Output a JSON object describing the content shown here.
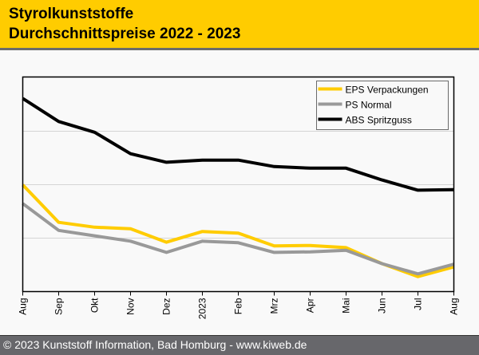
{
  "header": {
    "title_line1": "Styrolkunststoffe",
    "title_line2": "Durchschnittspreise 2022 - 2023"
  },
  "footer": {
    "text": "© 2023 Kunststoff Information, Bad Homburg - www.kiweb.de"
  },
  "chart_data": {
    "type": "line",
    "title": "Styrolkunststoffe Durchschnittspreise 2022 - 2023",
    "xlabel": "",
    "ylabel": "",
    "y_unit_note": "No y-axis tick labels shown; values estimated in gridline units (4 equal gridline intervals)",
    "ylim": [
      0,
      4
    ],
    "grid": true,
    "legend_position": "top-right",
    "categories": [
      "Aug",
      "Sep",
      "Okt",
      "Nov",
      "Dez",
      "2023",
      "Feb",
      "Mrz",
      "Apr",
      "Mai",
      "Jun",
      "Jul",
      "Aug"
    ],
    "series": [
      {
        "name": "EPS Verpackungen",
        "color": "#ffcc00",
        "values": [
          1.99,
          1.29,
          1.2,
          1.17,
          0.92,
          1.12,
          1.09,
          0.85,
          0.86,
          0.82,
          0.52,
          0.28,
          0.46
        ]
      },
      {
        "name": "PS Normal",
        "color": "#999999",
        "values": [
          1.64,
          1.14,
          1.04,
          0.94,
          0.73,
          0.94,
          0.91,
          0.73,
          0.74,
          0.77,
          0.52,
          0.33,
          0.51
        ]
      },
      {
        "name": "ABS Spritzguss",
        "color": "#000000",
        "values": [
          3.6,
          3.17,
          2.97,
          2.57,
          2.41,
          2.45,
          2.45,
          2.33,
          2.3,
          2.3,
          2.08,
          1.89,
          1.9
        ]
      }
    ]
  },
  "colors": {
    "header_bg": "#ffcc00",
    "footer_bg": "#67676b",
    "page_bg": "#f9f9f9"
  }
}
